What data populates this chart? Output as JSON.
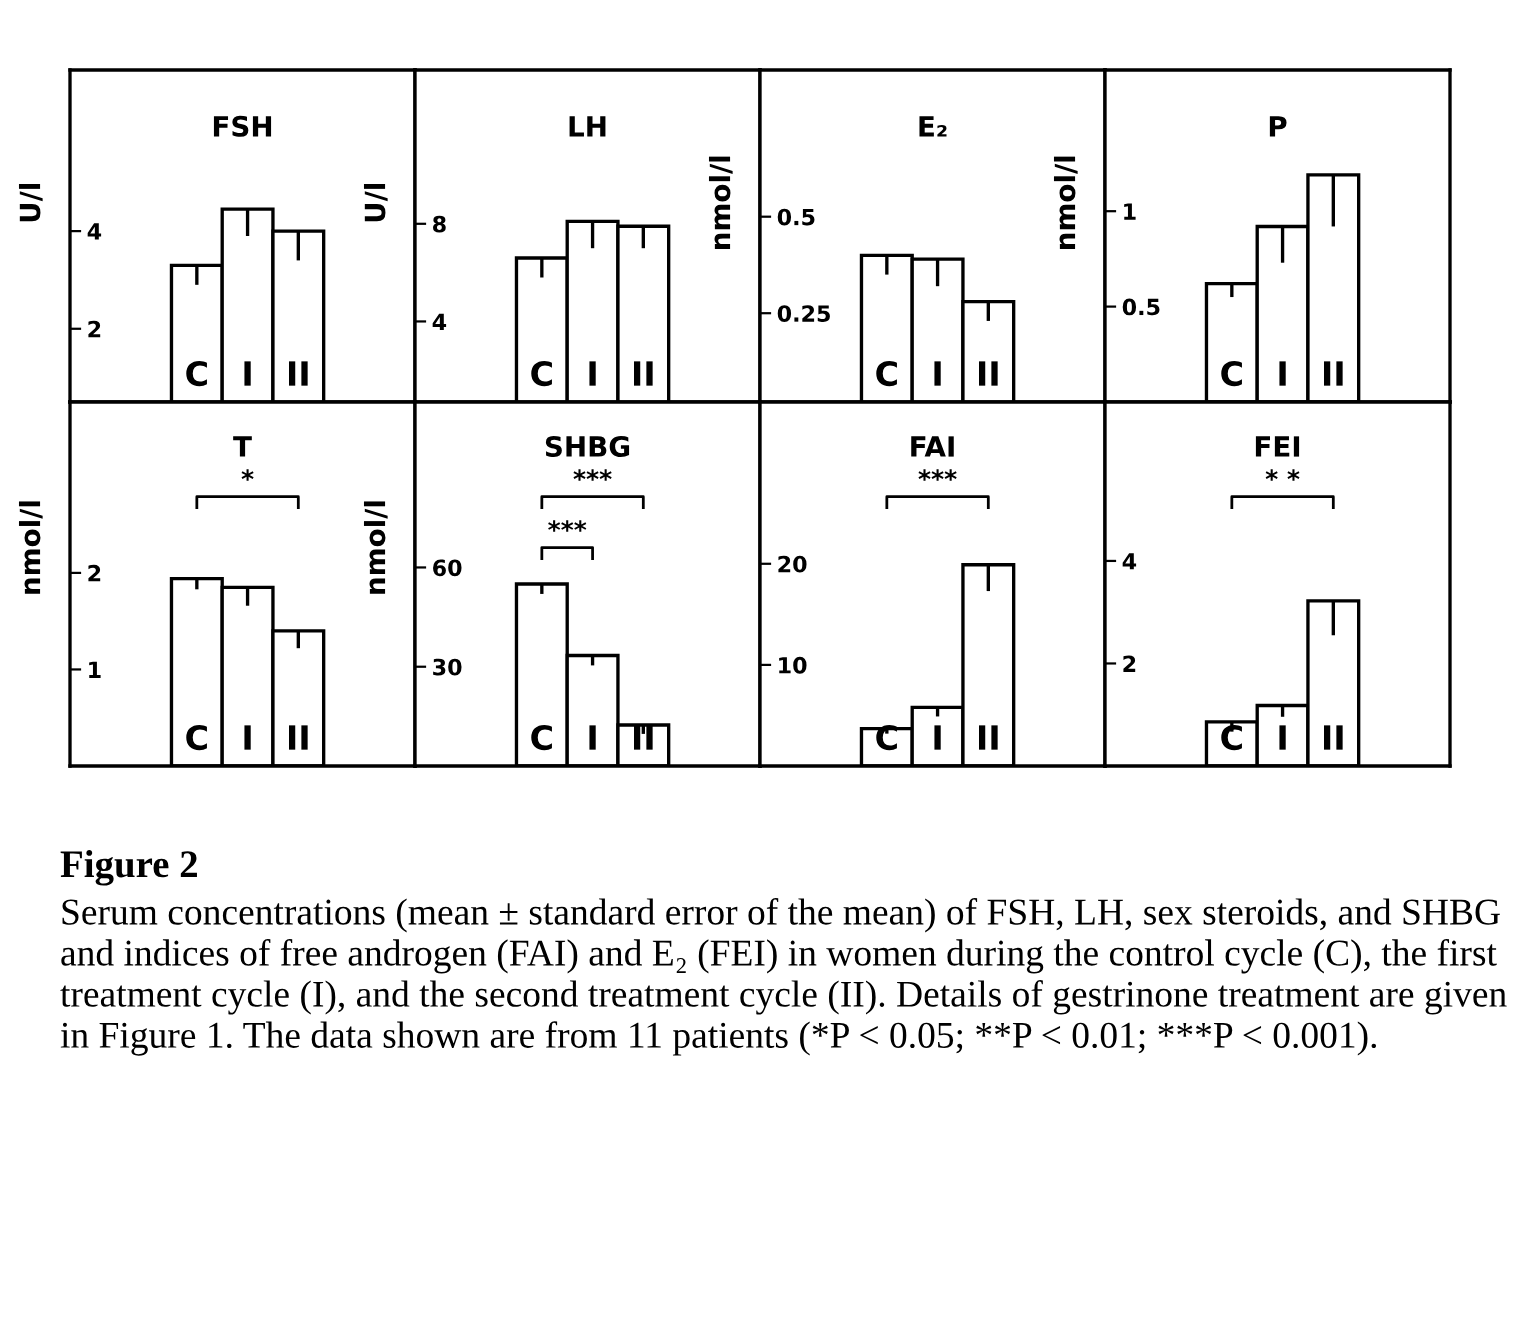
{
  "chart_data": [
    {
      "type": "bar",
      "title": "FSH",
      "ylabel": "U/l",
      "categories": [
        "C",
        "I",
        "II"
      ],
      "values": [
        3.3,
        4.45,
        4.0
      ],
      "errors": [
        0.4,
        0.55,
        0.6
      ],
      "color": "#ffffff",
      "ylim": [
        0.5,
        7.3
      ],
      "yticks": [
        2,
        4
      ],
      "grid": false,
      "legend": false
    },
    {
      "type": "bar",
      "title": "LH",
      "ylabel": "U/l",
      "categories": [
        "C",
        "I",
        "II"
      ],
      "values": [
        6.6,
        8.1,
        7.9
      ],
      "errors": [
        0.8,
        1.1,
        0.9
      ],
      "color": "#ffffff",
      "ylim": [
        0.7,
        14.3
      ],
      "yticks": [
        4,
        8
      ],
      "grid": false,
      "legend": false
    },
    {
      "type": "bar",
      "title": "E₂",
      "ylabel": "nmol/l",
      "categories": [
        "C",
        "I",
        "II"
      ],
      "values": [
        0.4,
        0.39,
        0.28
      ],
      "errors": [
        0.05,
        0.07,
        0.05
      ],
      "color": "#ffffff",
      "ylim": [
        0.02,
        0.88
      ],
      "yticks": [
        0.25,
        0.5
      ],
      "grid": false,
      "legend": false
    },
    {
      "type": "bar",
      "title": "P",
      "ylabel": "nmol/l",
      "categories": [
        "C",
        "I",
        "II"
      ],
      "values": [
        0.62,
        0.92,
        1.19
      ],
      "errors": [
        0.07,
        0.19,
        0.27
      ],
      "color": "#ffffff",
      "ylim": [
        0,
        1.74
      ],
      "yticks": [
        0.5,
        1
      ],
      "grid": false,
      "legend": false
    },
    {
      "type": "bar",
      "title": "T",
      "ylabel": "nmol/l",
      "categories": [
        "C",
        "I",
        "II"
      ],
      "values": [
        1.94,
        1.85,
        1.4
      ],
      "errors": [
        0.11,
        0.19,
        0.18
      ],
      "color": "#ffffff",
      "ylim": [
        0,
        3.77
      ],
      "yticks": [
        1,
        2
      ],
      "grid": false,
      "legend": false,
      "annotations": [
        "*"
      ]
    },
    {
      "type": "bar",
      "title": "SHBG",
      "ylabel": "nmol/l",
      "categories": [
        "C",
        "I",
        "II"
      ],
      "values": [
        55,
        33.4,
        12.4
      ],
      "errors": [
        3,
        3,
        2.7
      ],
      "color": "#ffffff",
      "ylim": [
        0,
        110
      ],
      "yticks": [
        30,
        60
      ],
      "grid": false,
      "legend": false,
      "annotations": [
        "***",
        "***"
      ]
    },
    {
      "type": "bar",
      "title": "FAI",
      "categories": [
        "C",
        "I",
        "II"
      ],
      "values": [
        3.7,
        5.8,
        19.9
      ],
      "errors": [
        0.5,
        0.9,
        2.6
      ],
      "color": "#ffffff",
      "ylim": [
        0,
        36
      ],
      "yticks": [
        10,
        20
      ],
      "grid": false,
      "legend": false,
      "annotations": [
        "***"
      ]
    },
    {
      "type": "bar",
      "title": "FEI",
      "categories": [
        "C",
        "I",
        "II"
      ],
      "values": [
        0.86,
        1.18,
        3.22
      ],
      "errors": [
        0.19,
        0.22,
        0.67
      ],
      "color": "#ffffff",
      "ylim": [
        0,
        7.1
      ],
      "yticks": [
        2,
        4
      ],
      "grid": false,
      "legend": false,
      "annotations": [
        "* *",
        "Figure 2",
        "Serum concentrations (mean ± standard error of the mean) of FSH, LH, sex steroids, and SHBG and indices of free androgen (FAI) and E₂ (FEI) in women during the control cycle (C), the first treatment cycle (I), and the second treatment cycle (II). Details of gestrinone treatment are given in Figure 1. The data shown are from 11 patients (*P < 0.05; **P < 0.01; ***P < 0.001)."
      ]
    }
  ]
}
